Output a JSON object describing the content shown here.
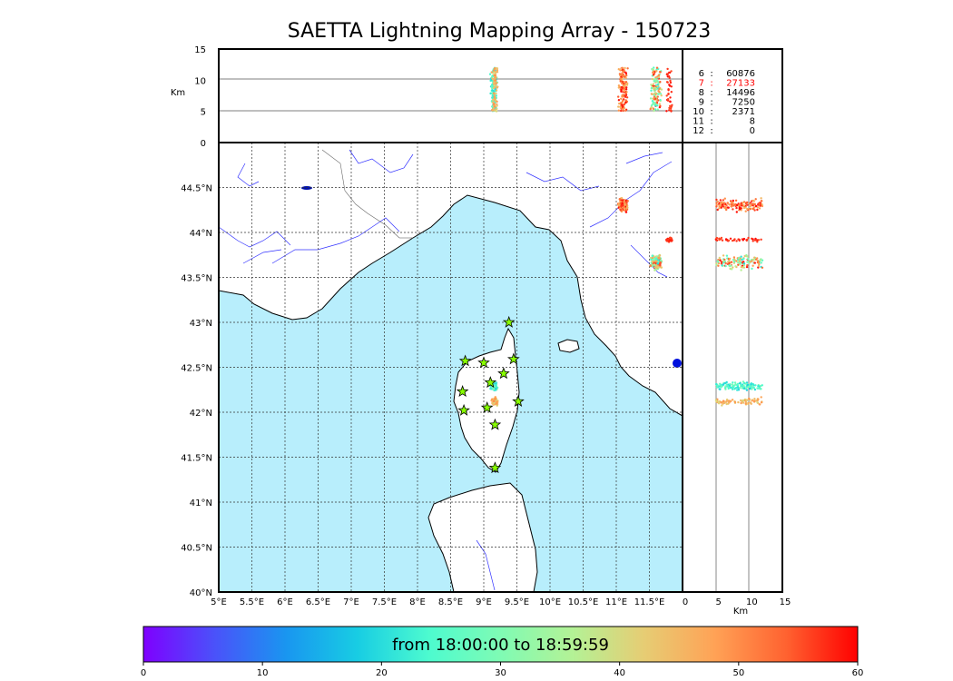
{
  "title": "SAETTA Lightning Mapping Array - 150723",
  "height_axis": {
    "label": "Km",
    "ticks": [
      "0",
      "5",
      "10",
      "15"
    ]
  },
  "side_axis": {
    "label": "Km",
    "ticks": [
      "0",
      "5",
      "10",
      "15"
    ]
  },
  "map": {
    "lon_range": [
      5,
      12
    ],
    "lat_range": [
      40,
      45
    ],
    "lon_ticks": [
      "5°E",
      "5.5°E",
      "6°E",
      "6.5°E",
      "7°E",
      "7.5°E",
      "8°E",
      "8.5°E",
      "9°E",
      "9.5°E",
      "10°E",
      "10.5°E",
      "11°E",
      "11.5°E"
    ],
    "lat_ticks": [
      "40°N",
      "40.5°N",
      "41°N",
      "41.5°N",
      "42°N",
      "42.5°N",
      "43°N",
      "43.5°N",
      "44°N",
      "44.5°N"
    ],
    "sea_color": "#b8eefc",
    "land_color": "#ffffff",
    "river_color": "#3333ff",
    "station_color": "#88ff00",
    "stations": [
      {
        "lon": 8.72,
        "lat": 42.57
      },
      {
        "lon": 9.0,
        "lat": 42.55
      },
      {
        "lon": 9.45,
        "lat": 42.59
      },
      {
        "lon": 9.38,
        "lat": 43.0
      },
      {
        "lon": 9.1,
        "lat": 42.33
      },
      {
        "lon": 9.3,
        "lat": 42.43
      },
      {
        "lon": 8.68,
        "lat": 42.23
      },
      {
        "lon": 8.7,
        "lat": 42.02
      },
      {
        "lon": 9.05,
        "lat": 42.05
      },
      {
        "lon": 9.52,
        "lat": 42.12
      },
      {
        "lon": 9.17,
        "lat": 41.86
      },
      {
        "lon": 9.17,
        "lat": 41.38
      }
    ]
  },
  "altitude_counts": [
    {
      "level": "6",
      "count": "60876",
      "highlight": false
    },
    {
      "level": "7",
      "count": "27133",
      "highlight": true
    },
    {
      "level": "8",
      "count": "14496",
      "highlight": false
    },
    {
      "level": "9",
      "count": "7250",
      "highlight": false
    },
    {
      "level": "10",
      "count": "2371",
      "highlight": false
    },
    {
      "level": "11",
      "count": "8",
      "highlight": false
    },
    {
      "level": "12",
      "count": "0",
      "highlight": false
    }
  ],
  "colorbar": {
    "label": "from 18:00:00 to 18:59:59",
    "range": [
      0,
      60
    ],
    "ticks": [
      "0",
      "10",
      "20",
      "30",
      "40",
      "50",
      "60"
    ],
    "colors": [
      "#7f00ff",
      "#4a52fa",
      "#1996f0",
      "#18cde3",
      "#4dfbcf",
      "#7ffbb4",
      "#b3f296",
      "#e6cd74",
      "#ffa256",
      "#ff6230",
      "#ff0000"
    ]
  },
  "lightning_clusters": [
    {
      "lon": 9.15,
      "lat": 42.29,
      "count": 120,
      "spread_lon": 0.06,
      "spread_lat": 0.06,
      "minutes": [
        18,
        30
      ]
    },
    {
      "lon": 9.17,
      "lat": 42.12,
      "count": 80,
      "spread_lon": 0.06,
      "spread_lat": 0.06,
      "minutes": [
        40,
        50
      ]
    },
    {
      "lon": 11.1,
      "lat": 44.3,
      "count": 140,
      "spread_lon": 0.1,
      "spread_lat": 0.1,
      "minutes": [
        45,
        60
      ]
    },
    {
      "lon": 11.6,
      "lat": 43.67,
      "count": 140,
      "spread_lon": 0.12,
      "spread_lat": 0.1,
      "minutes": [
        20,
        60
      ]
    },
    {
      "lon": 11.8,
      "lat": 43.92,
      "count": 40,
      "spread_lon": 0.05,
      "spread_lat": 0.03,
      "minutes": [
        55,
        60
      ]
    }
  ]
}
